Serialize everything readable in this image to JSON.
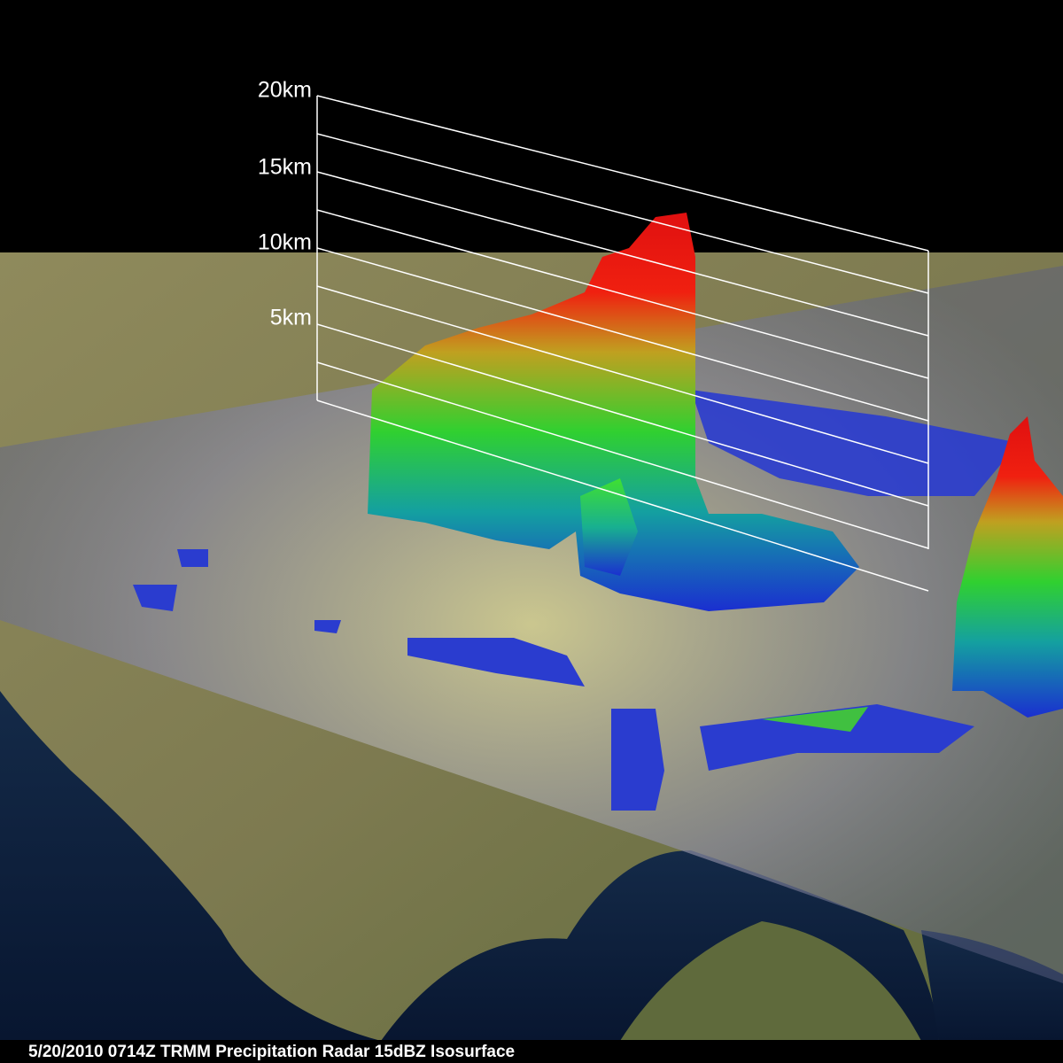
{
  "height_labels": [
    "20km",
    "15km",
    "10km",
    "5km"
  ],
  "caption": "5/20/2010 0714Z  TRMM Precipitation Radar 15dBZ Isosurface"
}
